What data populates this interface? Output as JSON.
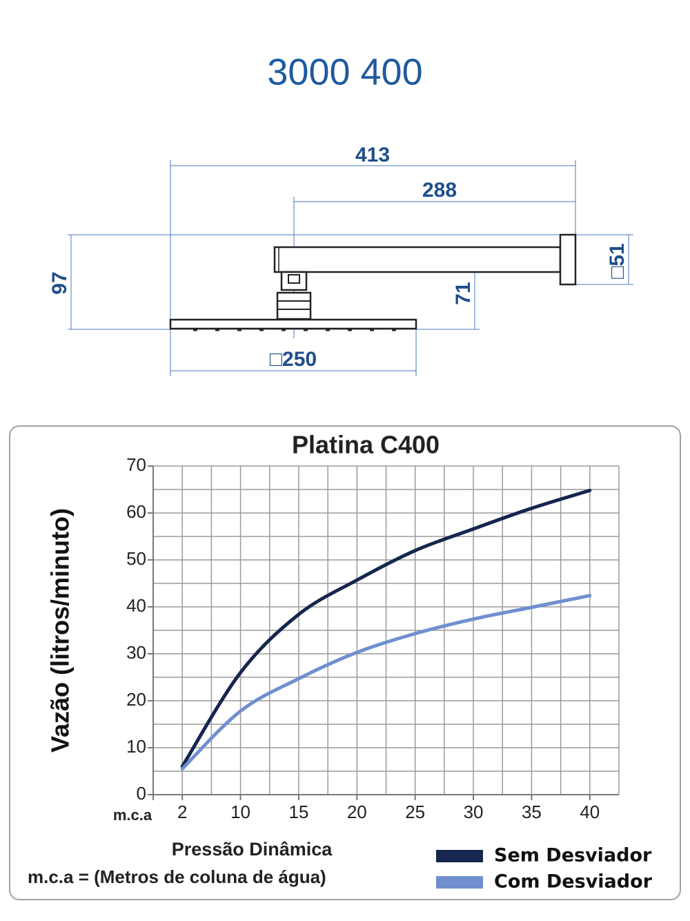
{
  "header": {
    "title": "3000 400"
  },
  "diagram": {
    "dimensions": {
      "total_length": "413",
      "arm_length": "288",
      "height": "97",
      "arm_height": "71",
      "flange": "□51",
      "plate": "□250"
    }
  },
  "chart_data": {
    "type": "line",
    "title": "Platina C400",
    "y_label": "Vazão (litros/minuto)",
    "x_unit": "m.c.a",
    "x_label": "Pressão Dinâmica",
    "note": "m.c.a = (Metros de coluna de água)",
    "categories": [
      "2",
      "10",
      "15",
      "20",
      "25",
      "30",
      "35",
      "40"
    ],
    "series": [
      {
        "name": "Sem Desviador",
        "color": "#15264f",
        "values": [
          6,
          26,
          38.4,
          45.7,
          52,
          56.6,
          61,
          64.8
        ]
      },
      {
        "name": "Com Desviador",
        "color": "#6f8fcf",
        "values": [
          5.5,
          17.8,
          24.7,
          30.3,
          34.3,
          37.4,
          39.9,
          42.4
        ]
      }
    ],
    "ylim": [
      0,
      70
    ],
    "yticks": [
      0,
      10,
      20,
      30,
      40,
      50,
      60,
      70
    ],
    "ygrid": [
      0,
      5,
      10,
      15,
      20,
      25,
      30,
      35,
      40,
      45,
      50,
      55,
      60,
      65,
      70
    ],
    "grid": true
  }
}
